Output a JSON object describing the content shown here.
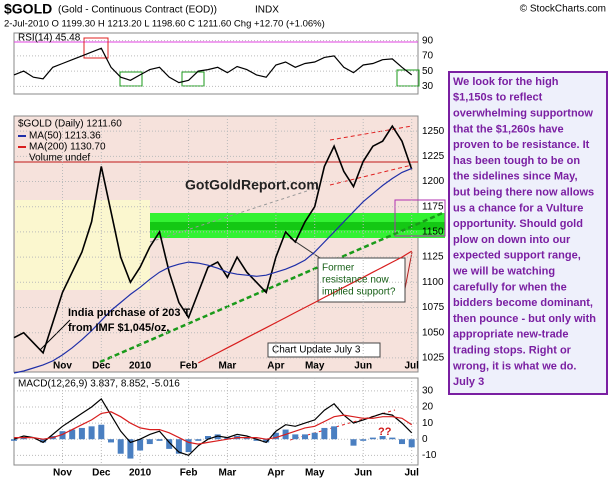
{
  "header": {
    "symbol": "$GOLD",
    "description": "(Gold - Continuous Contract (EOD))",
    "exchange": "INDX",
    "copyright": "© StockCharts.com",
    "quote": "2-Jul-2010   O 1199.30  H 1213.20  L 1198.60  C 1211.60  Chg +12.70 (+1.06%)"
  },
  "sidebar": {
    "lines": [
      "We look for the high",
      "$1,150s to reflect",
      "overwhelming supportnow",
      "that the $1,260s have",
      "proven to be resistance. It",
      "has been tough to be on",
      "the sidelines since May,",
      "but being there now allows",
      "us a chance for a Vulture",
      "opportunity.  Should gold",
      "plow on down into our",
      "expected support range,",
      "we will be watching",
      "carefully for when the",
      "bidders become dominant,",
      "then pounce - but only with",
      "appropriate new-trade",
      "trading stops.  Right or",
      "wrong, it is what we do.",
      "July 3"
    ]
  },
  "chart_data": [
    {
      "type": "line",
      "title": "RSI(14) 45.48",
      "ylim": [
        20,
        100
      ],
      "yticks": [
        30,
        50,
        70,
        90
      ],
      "series": [
        {
          "name": "RSI(14)",
          "color": "#000000",
          "values": [
            45,
            50,
            42,
            40,
            55,
            60,
            65,
            70,
            75,
            80,
            55,
            42,
            38,
            45,
            52,
            55,
            42,
            35,
            38,
            50,
            52,
            55,
            48,
            56,
            52,
            45,
            42,
            58,
            62,
            55,
            60,
            62,
            68,
            70,
            55,
            48,
            58,
            60,
            65,
            66,
            55,
            45
          ]
        }
      ]
    },
    {
      "type": "line",
      "title": "$GOLD (Daily) 1211.60",
      "legend_note": "Volume undef",
      "ylim": [
        1011,
        1265
      ],
      "yticks": [
        1025,
        1050,
        1075,
        1100,
        1125,
        1150,
        1175,
        1200,
        1225,
        1250
      ],
      "categories": [
        null,
        null,
        null,
        null,
        null,
        "Nov",
        null,
        null,
        null,
        "Dec",
        null,
        null,
        null,
        "2010",
        null,
        null,
        null,
        null,
        "Feb",
        null,
        null,
        null,
        "Mar",
        null,
        null,
        null,
        null,
        "Apr",
        null,
        null,
        null,
        "May",
        null,
        null,
        null,
        null,
        "Jun",
        null,
        null,
        null,
        null,
        "Jul"
      ],
      "series": [
        {
          "name": "$GOLD",
          "color": "#000000",
          "values": [
            1045,
            1050,
            1040,
            1030,
            1060,
            1090,
            1110,
            1130,
            1160,
            1215,
            1170,
            1125,
            1100,
            1115,
            1135,
            1150,
            1110,
            1080,
            1065,
            1090,
            1115,
            1120,
            1105,
            1125,
            1110,
            1100,
            1090,
            1125,
            1150,
            1140,
            1160,
            1175,
            1215,
            1235,
            1210,
            1195,
            1220,
            1235,
            1240,
            1255,
            1240,
            1212
          ]
        },
        {
          "name": "MA(50) 1213.36",
          "color": "#1f2fa8",
          "values": [
            1010,
            1012,
            1015,
            1018,
            1022,
            1028,
            1035,
            1043,
            1052,
            1062,
            1072,
            1080,
            1088,
            1095,
            1103,
            1110,
            1115,
            1118,
            1120,
            1119,
            1117,
            1114,
            1110,
            1108,
            1107,
            1106,
            1107,
            1110,
            1113,
            1117,
            1122,
            1130,
            1140,
            1150,
            1160,
            1170,
            1180,
            1188,
            1196,
            1203,
            1209,
            1213
          ]
        },
        {
          "name": "MA(200) 1130.70",
          "color": "#d81e1e",
          "values": [
            null,
            null,
            null,
            null,
            null,
            null,
            null,
            null,
            null,
            null,
            null,
            null,
            null,
            null,
            null,
            null,
            null,
            null,
            null,
            1020,
            1025,
            1030,
            1035,
            1040,
            1045,
            1050,
            1055,
            1060,
            1065,
            1070,
            1075,
            1080,
            1085,
            1090,
            1095,
            1100,
            1105,
            1110,
            1115,
            1120,
            1125,
            1131
          ]
        }
      ],
      "annotations": [
        "GotGoldReport.com",
        "India purchase of 203 T",
        "from IMF $1,045/oz.",
        "Former",
        "resistance now",
        "implied support?",
        "Chart Update July 3"
      ]
    },
    {
      "type": "line",
      "title": "MACD(12,26,9) 3.837, 8.852, -5.016",
      "ylim": [
        -16,
        38
      ],
      "yticks": [
        30,
        20,
        10,
        0,
        -10
      ],
      "categories": [
        null,
        null,
        null,
        null,
        null,
        "Nov",
        null,
        null,
        null,
        "Dec",
        null,
        null,
        null,
        "2010",
        null,
        null,
        null,
        null,
        "Feb",
        null,
        null,
        null,
        "Mar",
        null,
        null,
        null,
        null,
        "Apr",
        null,
        null,
        null,
        "May",
        null,
        null,
        null,
        null,
        "Jun",
        null,
        null,
        null,
        null,
        "Jul"
      ],
      "series": [
        {
          "name": "Histogram",
          "type": "bar",
          "color": "#4a7fc1",
          "values": [
            -1,
            1,
            0,
            -2,
            2,
            5,
            6,
            7,
            8,
            9,
            -2,
            -9,
            -12,
            -7,
            -3,
            -1,
            -6,
            -9,
            -8,
            -1,
            2,
            3,
            1,
            2,
            1,
            -1,
            -2,
            4,
            6,
            3,
            3,
            4,
            7,
            8,
            0,
            -4,
            -1,
            1,
            2,
            1,
            -3,
            -5
          ]
        },
        {
          "name": "MACD",
          "color": "#000000",
          "values": [
            0,
            2,
            1,
            -2,
            3,
            8,
            12,
            16,
            20,
            25,
            15,
            5,
            -2,
            0,
            3,
            5,
            -2,
            -8,
            -10,
            -4,
            0,
            2,
            1,
            3,
            2,
            0,
            -2,
            5,
            9,
            8,
            10,
            12,
            18,
            22,
            15,
            10,
            12,
            14,
            16,
            15,
            10,
            4
          ]
        },
        {
          "name": "Signal",
          "color": "#d81e1e",
          "values": [
            1,
            1,
            1,
            0,
            1,
            3,
            6,
            9,
            12,
            16,
            17,
            14,
            10,
            7,
            6,
            6,
            4,
            1,
            -2,
            -3,
            -2,
            -1,
            0,
            1,
            1,
            1,
            0,
            1,
            3,
            5,
            7,
            8,
            11,
            14,
            15,
            14,
            13,
            13,
            14,
            14,
            13,
            9
          ]
        }
      ],
      "annotations": [
        "??"
      ]
    }
  ]
}
